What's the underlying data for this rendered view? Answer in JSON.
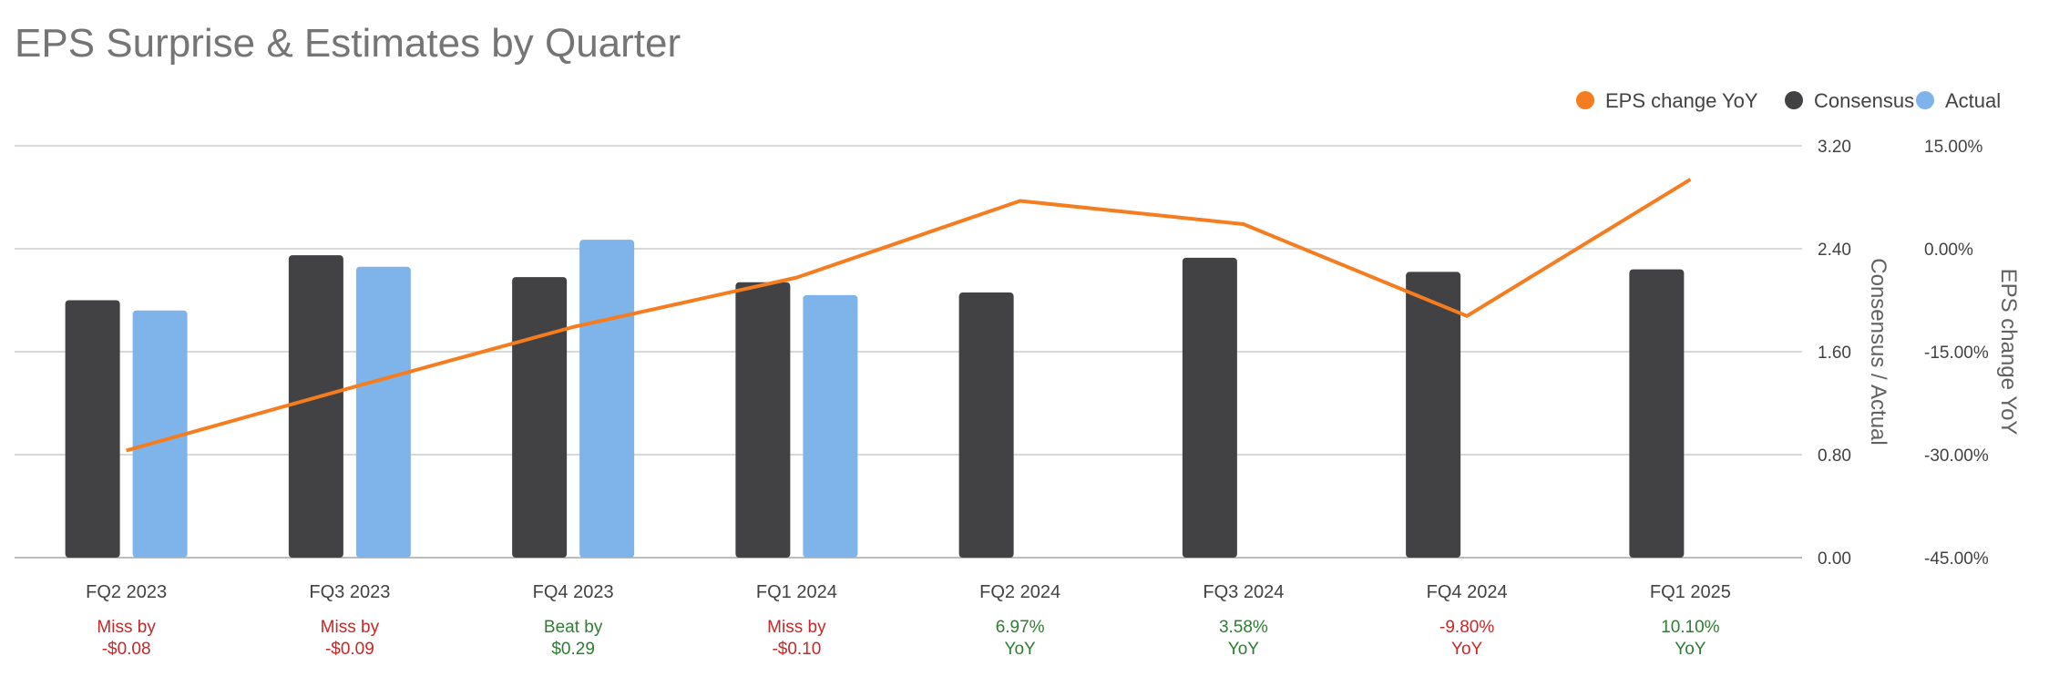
{
  "title": "EPS Surprise & Estimates by Quarter",
  "legend": [
    {
      "label": "EPS change YoY",
      "color": "#f57c1f"
    },
    {
      "label": "Consensus",
      "color": "#424245"
    },
    {
      "label": "Actual",
      "color": "#7fb4ea"
    }
  ],
  "chart_data": {
    "type": "bar",
    "title": "EPS Surprise & Estimates by Quarter",
    "categories": [
      "FQ2 2023",
      "FQ3 2023",
      "FQ4 2023",
      "FQ1 2024",
      "FQ2 2024",
      "FQ3 2024",
      "FQ4 2024",
      "FQ1 2025"
    ],
    "series": [
      {
        "name": "Consensus",
        "kind": "bar",
        "axis": "left",
        "color": "#424245",
        "values": [
          2.0,
          2.35,
          2.18,
          2.14,
          2.06,
          2.33,
          2.22,
          2.24
        ]
      },
      {
        "name": "Actual",
        "kind": "bar",
        "axis": "left",
        "color": "#7fb4ea",
        "values": [
          1.92,
          2.26,
          2.47,
          2.04,
          null,
          null,
          null,
          null
        ]
      },
      {
        "name": "EPS change YoY",
        "kind": "line",
        "axis": "right",
        "color": "#f57c1f",
        "values": [
          -29.4,
          -20.3,
          -11.4,
          -4.2,
          6.97,
          3.58,
          -9.8,
          10.1
        ]
      }
    ],
    "left_axis": {
      "label": "Consensus / Actual",
      "ylim": [
        0,
        3.2
      ],
      "ticks": [
        "3.20",
        "2.40",
        "1.60",
        "0.80",
        "0.00"
      ]
    },
    "right_axis": {
      "label": "EPS change YoY",
      "ylim": [
        -45,
        15
      ],
      "ticks": [
        "15.00%",
        "0.00%",
        "-15.00%",
        "-30.00%",
        "-45.00%"
      ]
    },
    "grid": true,
    "legend_position": "top-right",
    "surprise_labels": [
      {
        "line1": "Miss by",
        "line2": "-$0.08",
        "color": "#c62828"
      },
      {
        "line1": "Miss by",
        "line2": "-$0.09",
        "color": "#c62828"
      },
      {
        "line1": "Beat by",
        "line2": "$0.29",
        "color": "#2e7d32"
      },
      {
        "line1": "Miss by",
        "line2": "-$0.10",
        "color": "#c62828"
      },
      {
        "line1": "6.97%",
        "line2": "YoY",
        "color": "#2e7d32"
      },
      {
        "line1": "3.58%",
        "line2": "YoY",
        "color": "#2e7d32"
      },
      {
        "line1": "-9.80%",
        "line2": "YoY",
        "color": "#c62828"
      },
      {
        "line1": "10.10%",
        "line2": "YoY",
        "color": "#2e7d32"
      }
    ]
  }
}
